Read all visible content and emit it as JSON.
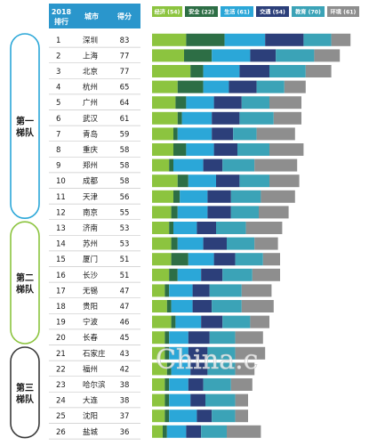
{
  "chart_data": {
    "type": "bar",
    "stacked": true,
    "orientation": "horizontal",
    "table_headers": {
      "rank": "2018\n排行",
      "city": "城市",
      "score": "得分"
    },
    "legend": [
      {
        "label": "经济 (54)",
        "color": "#8cc43f"
      },
      {
        "label": "安全 (22)",
        "color": "#2d6e45"
      },
      {
        "label": "生活 (61)",
        "color": "#2ba7d8"
      },
      {
        "label": "交通 (54)",
        "color": "#2c3f7a"
      },
      {
        "label": "教育 (70)",
        "color": "#3ba3b7"
      },
      {
        "label": "环境 (61)",
        "color": "#8e8e8e"
      }
    ],
    "tiers": [
      {
        "label": "第一\n梯队",
        "color": "#2ba7d8",
        "from": 0,
        "to": 11
      },
      {
        "label": "第二\n梯队",
        "color": "#8cc43f",
        "from": 12,
        "to": 19
      },
      {
        "label": "第三\n梯队",
        "color": "#3a3a3a",
        "from": 20,
        "to": 25
      }
    ],
    "rows": [
      {
        "rank": "1",
        "city": "深圳",
        "score": "83",
        "values": [
          16,
          18,
          19,
          18,
          13,
          9
        ]
      },
      {
        "rank": "2",
        "city": "上海",
        "score": "77",
        "values": [
          15,
          13,
          18,
          12,
          18,
          12
        ]
      },
      {
        "rank": "3",
        "city": "北京",
        "score": "77",
        "values": [
          18,
          6,
          17,
          14,
          17,
          12
        ]
      },
      {
        "rank": "4",
        "city": "杭州",
        "score": "65",
        "values": [
          12,
          12,
          12,
          13,
          13,
          10
        ]
      },
      {
        "rank": "5",
        "city": "广州",
        "score": "64",
        "values": [
          11,
          5,
          13,
          13,
          13,
          15
        ]
      },
      {
        "rank": "6",
        "city": "武汉",
        "score": "61",
        "values": [
          12,
          2,
          14,
          13,
          16,
          13
        ]
      },
      {
        "rank": "7",
        "city": "青岛",
        "score": "59",
        "values": [
          10,
          2,
          16,
          10,
          11,
          18
        ]
      },
      {
        "rank": "8",
        "city": "重庆",
        "score": "58",
        "values": [
          10,
          6,
          13,
          11,
          15,
          16
        ]
      },
      {
        "rank": "9",
        "city": "郑州",
        "score": "58",
        "values": [
          8,
          2,
          14,
          9,
          15,
          20
        ]
      },
      {
        "rank": "10",
        "city": "成都",
        "score": "58",
        "values": [
          12,
          5,
          13,
          11,
          14,
          14
        ]
      },
      {
        "rank": "11",
        "city": "天津",
        "score": "56",
        "values": [
          10,
          3,
          13,
          11,
          14,
          16
        ]
      },
      {
        "rank": "12",
        "city": "南京",
        "score": "55",
        "values": [
          9,
          3,
          14,
          11,
          13,
          14
        ]
      },
      {
        "rank": "13",
        "city": "济南",
        "score": "53",
        "values": [
          8,
          2,
          11,
          9,
          14,
          17
        ]
      },
      {
        "rank": "14",
        "city": "苏州",
        "score": "53",
        "values": [
          9,
          3,
          12,
          11,
          13,
          11
        ]
      },
      {
        "rank": "15",
        "city": "厦门",
        "score": "51",
        "values": [
          9,
          8,
          12,
          10,
          13,
          8
        ]
      },
      {
        "rank": "16",
        "city": "长沙",
        "score": "51",
        "values": [
          8,
          4,
          11,
          10,
          14,
          13
        ]
      },
      {
        "rank": "17",
        "city": "无锡",
        "score": "47",
        "values": [
          6,
          2,
          11,
          8,
          15,
          14
        ]
      },
      {
        "rank": "18",
        "city": "贵阳",
        "score": "47",
        "values": [
          7,
          2,
          10,
          9,
          14,
          15
        ]
      },
      {
        "rank": "19",
        "city": "宁波",
        "score": "46",
        "values": [
          9,
          2,
          12,
          10,
          13,
          9
        ]
      },
      {
        "rank": "20",
        "city": "长春",
        "score": "45",
        "values": [
          6,
          2,
          9,
          10,
          12,
          13
        ]
      },
      {
        "rank": "21",
        "city": "石家庄",
        "score": "43",
        "values": [
          6,
          2,
          9,
          9,
          13,
          14
        ]
      },
      {
        "rank": "22",
        "city": "福州",
        "score": "42",
        "values": [
          7,
          2,
          9,
          8,
          13,
          9
        ]
      },
      {
        "rank": "23",
        "city": "哈尔滨",
        "score": "38",
        "values": [
          6,
          2,
          9,
          7,
          13,
          10
        ]
      },
      {
        "rank": "24",
        "city": "大连",
        "score": "38",
        "values": [
          6,
          2,
          10,
          7,
          14,
          6
        ]
      },
      {
        "rank": "25",
        "city": "沈阳",
        "score": "37",
        "values": [
          6,
          2,
          13,
          7,
          11,
          6
        ]
      },
      {
        "rank": "26",
        "city": "盐城",
        "score": "36",
        "values": [
          5,
          2,
          9,
          7,
          12,
          16
        ]
      }
    ]
  },
  "watermark": "China.c"
}
